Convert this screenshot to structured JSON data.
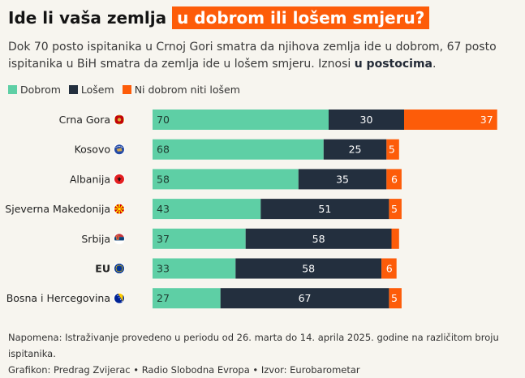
{
  "header": {
    "title_plain": "Ide li vaša zemlja",
    "title_highlight": "u dobrom ili lošem smjeru?",
    "subtitle_text": "Dok 70 posto ispitanika u Crnoj Gori smatra da njihova zemlja ide u dobrom, 67 posto ispitanika u BiH smatra da zemlja ide u lošem smjeru. Iznosi",
    "subtitle_bold": "u postocima",
    "subtitle_end": "."
  },
  "colors": {
    "dobrom": "#5ecfa5",
    "losem": "#232f3e",
    "ni": "#fd5c09",
    "highlight": "#fd5c09"
  },
  "chart_data": {
    "type": "bar",
    "orientation": "horizontal",
    "stacked": true,
    "categories": [
      "Crna Gora",
      "Kosovo",
      "Albanija",
      "Sjeverna Makedonija",
      "Srbija",
      "EU",
      "Bosna i Hercegovina"
    ],
    "bold_categories": [
      "EU"
    ],
    "flag_icons": [
      "montenegro-flag-icon",
      "kosovo-flag-icon",
      "albania-flag-icon",
      "north-macedonia-flag-icon",
      "serbia-flag-icon",
      "eu-flag-icon",
      "bosnia-flag-icon"
    ],
    "series": [
      {
        "name": "Dobrom",
        "values": [
          70,
          68,
          58,
          43,
          37,
          33,
          27
        ],
        "labels": [
          "70",
          "68",
          "58",
          "43",
          "37",
          "33",
          "27"
        ]
      },
      {
        "name": "Lošem",
        "values": [
          30,
          25,
          35,
          51,
          58,
          58,
          67
        ],
        "labels": [
          "30",
          "25",
          "35",
          "51",
          "58",
          "58",
          "67"
        ]
      },
      {
        "name": "Ni dobrom niti lošem",
        "values": [
          37,
          5,
          6,
          5,
          3,
          6,
          5
        ],
        "labels": [
          "37",
          "5",
          "6",
          "5",
          "",
          "6",
          "5"
        ]
      }
    ]
  },
  "footer": {
    "note": "Napomena: Istraživanje provedeno u periodu od 26. marta do 14. aprila 2025. godine na različitom broju ispitanika.",
    "credit": "Grafikon: Predrag Zvijerac • Radio Slobodna Evropa • Izvor: Eurobarometar"
  }
}
